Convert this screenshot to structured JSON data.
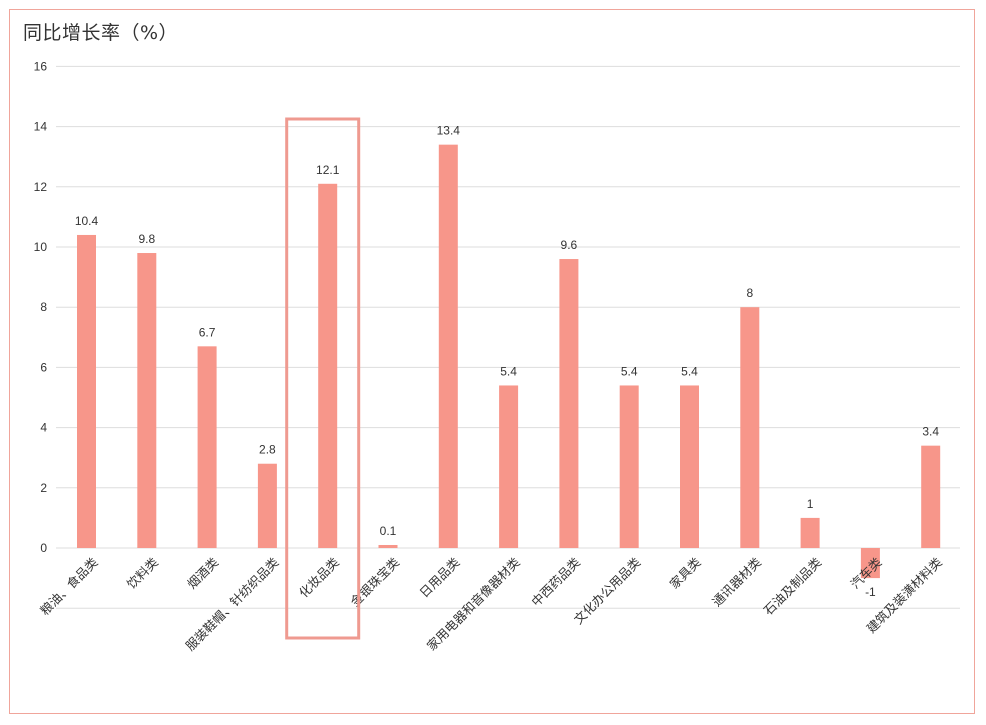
{
  "chart_data": {
    "type": "bar",
    "title": "同比增长率（%）",
    "categories": [
      "粮油、食品类",
      "饮料类",
      "烟酒类",
      "服装鞋帽、针纺织品类",
      "化妆品类",
      "金银珠宝类",
      "日用品类",
      "家用电器和音像器材类",
      "中西药品类",
      "文化办公用品类",
      "家具类",
      "通讯器材类",
      "石油及制品类",
      "汽车类",
      "建筑及装潢材料类"
    ],
    "values": [
      10.4,
      9.8,
      6.7,
      2.8,
      12.1,
      0.1,
      13.4,
      5.4,
      9.6,
      5.4,
      5.4,
      8,
      1,
      -1,
      3.4
    ],
    "data_labels": [
      "10.4",
      "9.8",
      "6.7",
      "2.8",
      "12.1",
      "0.1",
      "13.4",
      "5.4",
      "9.6",
      "5.4",
      "5.4",
      "8",
      "1",
      "-1",
      "3.4"
    ],
    "yticks": [
      "0",
      "2",
      "4",
      "6",
      "8",
      "10",
      "12",
      "14",
      "16"
    ],
    "ylim": [
      -2,
      16
    ],
    "grid": true,
    "highlight_index": 4,
    "colors": {
      "bar": "#f7968a",
      "highlight_box": "#ef9a90",
      "grid": "#dddddd"
    }
  }
}
